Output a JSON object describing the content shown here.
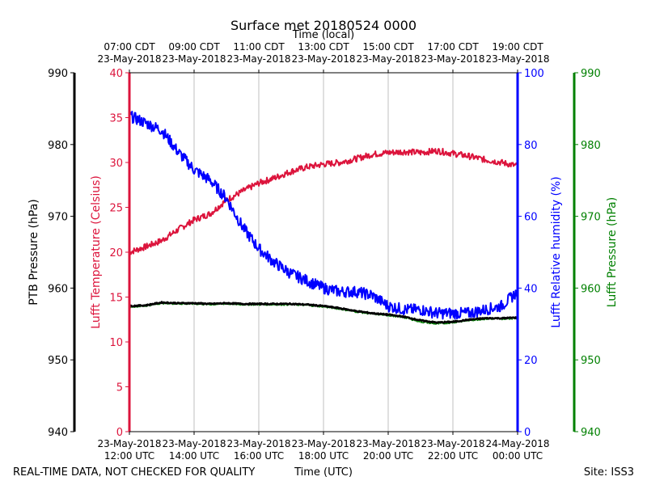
{
  "chart_data": {
    "type": "line",
    "title": "Surface met 20180524 0000",
    "top_axis_label": "Time (local)",
    "xlabel": "Time (UTC)",
    "footer_left": "REAL-TIME DATA, NOT CHECKED FOR QUALITY",
    "footer_right": "Site: ISS3",
    "x_range_hours": [
      0,
      12
    ],
    "x_ticks": [
      {
        "hour": 0,
        "utc_date": "23-May-2018",
        "utc_time": "12:00 UTC",
        "local_time": "07:00 CDT",
        "local_date": "23-May-2018"
      },
      {
        "hour": 2,
        "utc_date": "23-May-2018",
        "utc_time": "14:00 UTC",
        "local_time": "09:00 CDT",
        "local_date": "23-May-2018"
      },
      {
        "hour": 4,
        "utc_date": "23-May-2018",
        "utc_time": "16:00 UTC",
        "local_time": "11:00 CDT",
        "local_date": "23-May-2018"
      },
      {
        "hour": 6,
        "utc_date": "23-May-2018",
        "utc_time": "18:00 UTC",
        "local_time": "13:00 CDT",
        "local_date": "23-May-2018"
      },
      {
        "hour": 8,
        "utc_date": "23-May-2018",
        "utc_time": "20:00 UTC",
        "local_time": "15:00 CDT",
        "local_date": "23-May-2018"
      },
      {
        "hour": 10,
        "utc_date": "23-May-2018",
        "utc_time": "22:00 UTC",
        "local_time": "17:00 CDT",
        "local_date": "23-May-2018"
      },
      {
        "hour": 12,
        "utc_date": "24-May-2018",
        "utc_time": "00:00 UTC",
        "local_time": "19:00 CDT",
        "local_date": "23-May-2018"
      }
    ],
    "axes": {
      "ptb_pressure": {
        "label": "PTB Pressure (hPa)",
        "range": [
          940,
          990
        ],
        "ticks": [
          940,
          950,
          960,
          970,
          980,
          990
        ],
        "color": "#000000"
      },
      "temperature": {
        "label": "Lufft Temperature (Celsius)",
        "range": [
          0,
          40
        ],
        "ticks": [
          0,
          5,
          10,
          15,
          20,
          25,
          30,
          35,
          40
        ],
        "color": "#dc143c"
      },
      "humidity": {
        "label": "Lufft Relative humidity (%)",
        "range": [
          0,
          100
        ],
        "ticks": [
          0,
          20,
          40,
          60,
          80,
          100
        ],
        "color": "#0000ff"
      },
      "lufft_pressure": {
        "label": "Lufft Pressure (hPa)",
        "range": [
          940,
          990
        ],
        "ticks": [
          940,
          950,
          960,
          970,
          980,
          990
        ],
        "color": "#008000"
      }
    },
    "series": [
      {
        "name": "Lufft Temperature",
        "axis": "temperature",
        "color": "#dc143c",
        "x": [
          0,
          0.5,
          1,
          1.5,
          2,
          2.5,
          3,
          3.5,
          4,
          4.5,
          5,
          5.5,
          6,
          6.5,
          7,
          7.5,
          8,
          8.5,
          9,
          9.5,
          10,
          10.5,
          11,
          11.5,
          12
        ],
        "y": [
          20.0,
          20.6,
          21.3,
          22.5,
          23.6,
          24.3,
          25.8,
          26.8,
          27.7,
          28.3,
          29.0,
          29.5,
          29.8,
          30.0,
          30.4,
          30.9,
          31.1,
          31.2,
          31.1,
          31.3,
          31.0,
          30.7,
          30.3,
          30.0,
          29.6
        ]
      },
      {
        "name": "Lufft Relative humidity",
        "axis": "humidity",
        "color": "#0000ff",
        "x": [
          0,
          0.5,
          1,
          1.5,
          2,
          2.5,
          3,
          3.5,
          4,
          4.5,
          5,
          5.5,
          6,
          6.5,
          7,
          7.5,
          8,
          8.5,
          9,
          9.5,
          10,
          10.5,
          11,
          11.5,
          12
        ],
        "y": [
          88,
          86,
          84,
          78,
          73,
          70,
          65,
          57,
          51,
          47,
          44,
          42,
          40,
          39,
          39,
          38,
          35,
          34,
          34,
          33,
          33,
          33,
          34,
          35,
          39
        ]
      },
      {
        "name": "PTB Pressure",
        "axis": "ptb_pressure",
        "color": "#000000",
        "x": [
          0,
          0.5,
          1,
          1.5,
          2,
          2.5,
          3,
          3.5,
          4,
          4.5,
          5,
          5.5,
          6,
          6.5,
          7,
          7.5,
          8,
          8.5,
          9,
          9.5,
          10,
          10.5,
          11,
          11.5,
          12
        ],
        "y": [
          957.5,
          957.6,
          958.0,
          957.9,
          957.9,
          957.8,
          957.9,
          957.8,
          957.8,
          957.8,
          957.8,
          957.7,
          957.5,
          957.2,
          956.8,
          956.5,
          956.3,
          956.0,
          955.5,
          955.2,
          955.3,
          955.6,
          955.8,
          955.8,
          955.9
        ]
      },
      {
        "name": "Lufft Pressure",
        "axis": "lufft_pressure",
        "color": "#008000",
        "x": [
          0,
          0.5,
          1,
          1.5,
          2,
          2.5,
          3,
          3.5,
          4,
          4.5,
          5,
          5.5,
          6,
          6.5,
          7,
          7.5,
          8,
          8.5,
          9,
          9.5,
          10,
          10.5,
          11,
          11.5,
          12
        ],
        "y": [
          957.4,
          957.5,
          957.9,
          957.8,
          957.8,
          957.7,
          957.8,
          957.7,
          957.7,
          957.7,
          957.7,
          957.6,
          957.4,
          957.1,
          956.7,
          956.4,
          956.2,
          955.9,
          955.3,
          955.0,
          955.2,
          955.5,
          955.7,
          955.7,
          955.8
        ]
      }
    ],
    "grid": "vertical",
    "legend": "none"
  }
}
